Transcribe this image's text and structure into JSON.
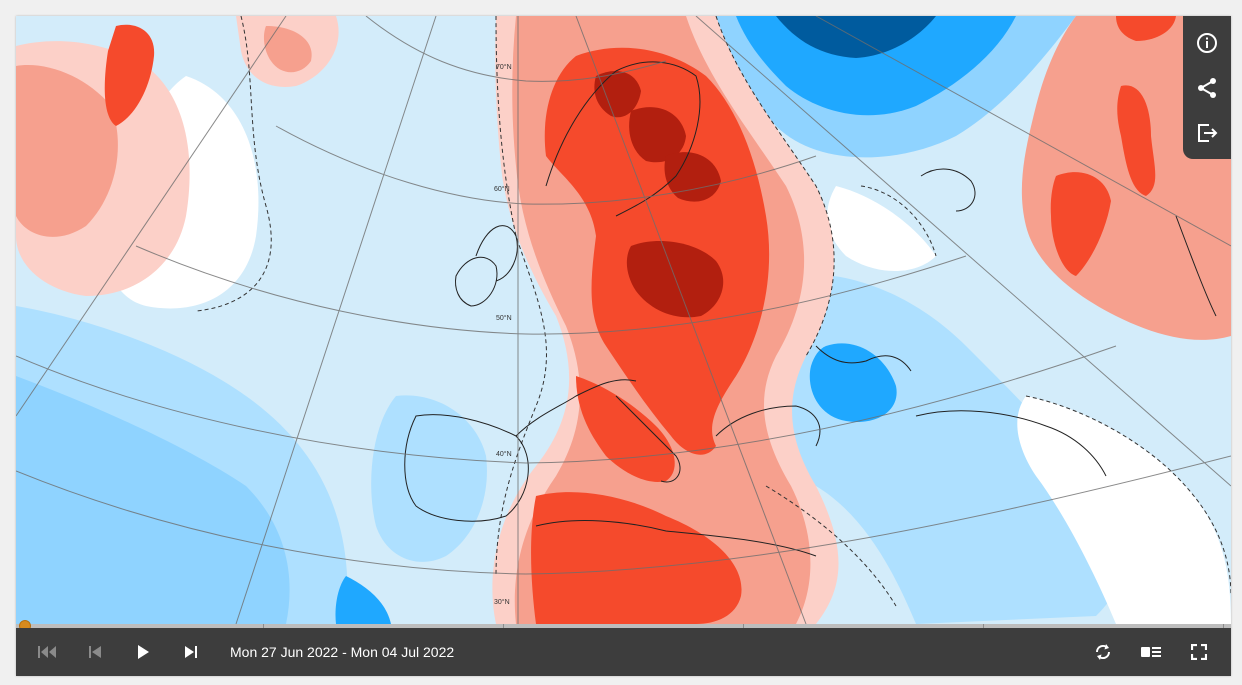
{
  "map": {
    "latitude_labels": [
      "70°N",
      "60°N",
      "50°N",
      "40°N",
      "30°N"
    ]
  },
  "toolbar": {
    "info_icon": "info-icon",
    "share_icon": "share-icon",
    "export_icon": "export-icon"
  },
  "player": {
    "date_range": "Mon 27 Jun 2022 - Mon 04 Jul 2022",
    "first_icon": "skip-to-start-icon",
    "prev_icon": "step-back-icon",
    "play_icon": "play-icon",
    "next_icon": "step-forward-icon",
    "loop_icon": "loop-icon",
    "legend_icon": "legend-icon",
    "fullscreen_icon": "fullscreen-icon",
    "progress": 0
  },
  "colors": {
    "cold_deep": "#005b9e",
    "cold_strong": "#1fa8ff",
    "cold_mid": "#8fd3ff",
    "cold_light": "#d3ecfa",
    "neutral": "#ffffff",
    "warm_light": "#fcd0c8",
    "warm_mid": "#f6a08e",
    "warm_strong": "#f54a2c",
    "warm_deep": "#b21f0f",
    "control_bar": "#3d3d3d",
    "timeline_handle": "#d68a1e"
  }
}
